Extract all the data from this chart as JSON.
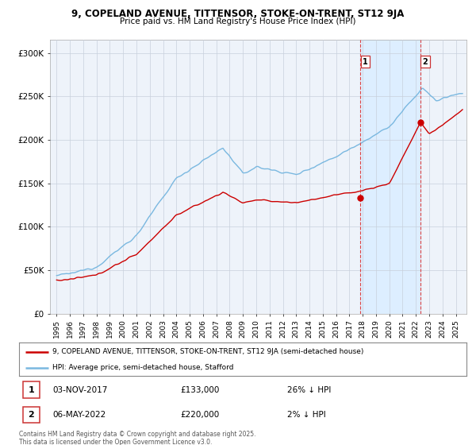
{
  "title": "9, COPELAND AVENUE, TITTENSOR, STOKE-ON-TRENT, ST12 9JA",
  "subtitle": "Price paid vs. HM Land Registry's House Price Index (HPI)",
  "ylabel_ticks": [
    "£0",
    "£50K",
    "£100K",
    "£150K",
    "£200K",
    "£250K",
    "£300K"
  ],
  "ytick_values": [
    0,
    50000,
    100000,
    150000,
    200000,
    250000,
    300000
  ],
  "ylim": [
    0,
    315000
  ],
  "hpi_color": "#7ab8e0",
  "price_color": "#cc0000",
  "vline_color": "#dd4444",
  "shade_color": "#ddeeff",
  "background_color": "#ffffff",
  "plot_bg_color": "#eef3fa",
  "grid_color": "#c8d0dc",
  "legend_label_price": "9, COPELAND AVENUE, TITTENSOR, STOKE-ON-TRENT, ST12 9JA (semi-detached house)",
  "legend_label_hpi": "HPI: Average price, semi-detached house, Stafford",
  "annotation1_date": "03-NOV-2017",
  "annotation1_price": "£133,000",
  "annotation1_hpi": "26% ↓ HPI",
  "annotation2_date": "06-MAY-2022",
  "annotation2_price": "£220,000",
  "annotation2_hpi": "2% ↓ HPI",
  "footer": "Contains HM Land Registry data © Crown copyright and database right 2025.\nThis data is licensed under the Open Government Licence v3.0.",
  "sale1_x": 2017.84,
  "sale1_y": 133000,
  "sale2_x": 2022.35,
  "sale2_y": 220000,
  "xmin": 1994.5,
  "xmax": 2025.8,
  "xticks": [
    1995,
    1996,
    1997,
    1998,
    1999,
    2000,
    2001,
    2002,
    2003,
    2004,
    2005,
    2006,
    2007,
    2008,
    2009,
    2010,
    2011,
    2012,
    2013,
    2014,
    2015,
    2016,
    2017,
    2018,
    2019,
    2020,
    2021,
    2022,
    2023,
    2024,
    2025
  ]
}
